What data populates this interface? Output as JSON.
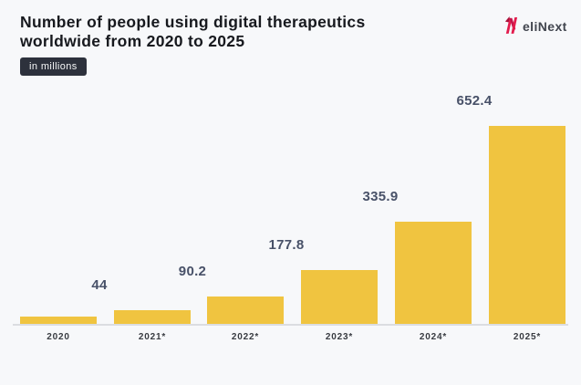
{
  "page": {
    "background": "#f7f8fa"
  },
  "header": {
    "title_line1": "Number of people using digital therapeutics",
    "title_line2": "worldwide from 2020 to 2025",
    "badge_label": "in millions",
    "logo": {
      "text": "eliNext",
      "mark_color": "#e31b4c",
      "mark_dark_color": "#a8123a",
      "text_color": "#41454e"
    }
  },
  "chart_data": {
    "type": "bar",
    "title": "Number of people using digital therapeutics worldwide from 2020 to 2025",
    "unit_note": "in millions",
    "categories": [
      "2020",
      "2021*",
      "2022*",
      "2023*",
      "2024*",
      "2025*"
    ],
    "values": [
      23,
      44,
      90.2,
      177.8,
      335.9,
      652.4
    ],
    "value_labels": [
      "",
      "44",
      "90.2",
      "177.8",
      "335.9",
      "652.4"
    ],
    "ylim": [
      0,
      700
    ],
    "xlabel": "",
    "ylabel": "",
    "grid": false,
    "legend": "none",
    "bar_color": "#f0c440",
    "value_label_color": "#485168",
    "axis_label_color": "#383b41",
    "axis_line_color": "#dbdde1"
  }
}
